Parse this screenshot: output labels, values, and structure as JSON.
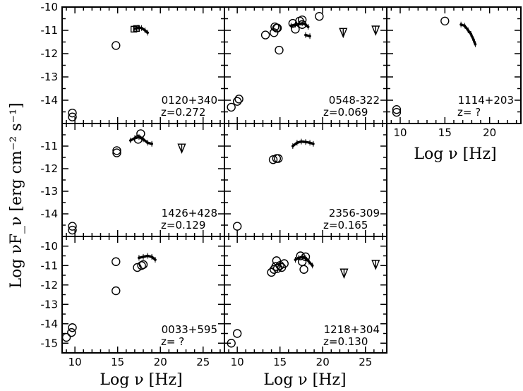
{
  "figure": {
    "y_axis_title": "Log νF_ν [erg cm⁻² s⁻¹]",
    "x_axis_title": "Log ν [Hz]"
  },
  "chart_data": [
    {
      "type": "scatter",
      "name": "0120+340",
      "redshift_label": "z=0.272",
      "xlim": [
        8.5,
        27.5
      ],
      "ylim": [
        -15,
        -10
      ],
      "ytick_labels": [
        "-10",
        "-11",
        "-12",
        "-13",
        "-14"
      ],
      "xtick_labels": [],
      "series": [
        {
          "marker": "open-circle",
          "points": [
            [
              9.7,
              -14.55
            ],
            [
              9.7,
              -14.72
            ],
            [
              14.8,
              -11.65
            ]
          ]
        },
        {
          "marker": "open-square",
          "points": [
            [
              16.9,
              -10.95
            ],
            [
              17.2,
              -10.92
            ]
          ]
        },
        {
          "marker": "spectrum",
          "points": [
            [
              17.0,
              -10.93
            ],
            [
              17.4,
              -10.88
            ],
            [
              17.8,
              -10.9
            ],
            [
              18.2,
              -11.0
            ],
            [
              18.5,
              -11.1
            ]
          ]
        }
      ]
    },
    {
      "type": "scatter",
      "name": "0548-322",
      "redshift_label": "z=0.069",
      "xlim": [
        8.5,
        27.5
      ],
      "ylim": [
        -15,
        -10
      ],
      "ytick_labels": [],
      "xtick_labels": [],
      "series": [
        {
          "marker": "open-circle",
          "points": [
            [
              9.3,
              -14.3
            ],
            [
              10.0,
              -14.05
            ],
            [
              10.2,
              -13.95
            ],
            [
              13.3,
              -11.2
            ],
            [
              14.3,
              -11.1
            ],
            [
              14.4,
              -10.85
            ],
            [
              14.6,
              -10.9
            ],
            [
              14.7,
              -10.9
            ],
            [
              14.9,
              -11.85
            ],
            [
              16.5,
              -10.7
            ],
            [
              16.8,
              -10.95
            ],
            [
              17.3,
              -10.6
            ],
            [
              17.6,
              -10.55
            ],
            [
              17.6,
              -10.75
            ],
            [
              19.6,
              -10.4
            ]
          ]
        },
        {
          "marker": "spectrum",
          "points": [
            [
              16.3,
              -10.8
            ],
            [
              16.8,
              -10.75
            ],
            [
              17.2,
              -10.72
            ],
            [
              17.6,
              -10.7
            ],
            [
              18.0,
              -10.75
            ],
            [
              18.3,
              -10.85
            ]
          ]
        },
        {
          "marker": "spectrum",
          "points": [
            [
              18.0,
              -11.2
            ],
            [
              18.5,
              -11.25
            ]
          ]
        },
        {
          "marker": "upper-limit",
          "points": [
            [
              22.4,
              -11.1
            ],
            [
              26.2,
              -11.0
            ]
          ]
        }
      ]
    },
    {
      "type": "scatter",
      "name": "1114+203",
      "redshift_label": "z= ?",
      "xlim": [
        8.5,
        23.5
      ],
      "ylim": [
        -15,
        -10
      ],
      "ytick_labels": [],
      "xtick_labels": [
        "10",
        "15",
        "20"
      ],
      "series": [
        {
          "marker": "open-circle",
          "points": [
            [
              9.6,
              -14.4
            ],
            [
              9.6,
              -14.52
            ],
            [
              15.0,
              -10.6
            ]
          ]
        },
        {
          "marker": "spectrum",
          "points": [
            [
              16.8,
              -10.75
            ],
            [
              17.2,
              -10.8
            ],
            [
              17.6,
              -11.0
            ],
            [
              17.9,
              -11.15
            ],
            [
              18.2,
              -11.4
            ],
            [
              18.4,
              -11.6
            ]
          ]
        }
      ]
    },
    {
      "type": "scatter",
      "name": "1426+428",
      "redshift_label": "z=0.129",
      "xlim": [
        8.5,
        27.5
      ],
      "ylim": [
        -15,
        -10
      ],
      "ytick_labels": [
        "-11",
        "-12",
        "-13",
        "-14"
      ],
      "xtick_labels": [],
      "series": [
        {
          "marker": "open-circle",
          "points": [
            [
              9.7,
              -14.55
            ],
            [
              9.7,
              -14.72
            ],
            [
              14.9,
              -11.2
            ],
            [
              14.9,
              -11.3
            ],
            [
              17.4,
              -10.7
            ],
            [
              17.7,
              -10.45
            ]
          ]
        },
        {
          "marker": "spectrum",
          "points": [
            [
              16.5,
              -10.75
            ],
            [
              17.0,
              -10.65
            ],
            [
              17.5,
              -10.6
            ],
            [
              18.0,
              -10.7
            ],
            [
              18.5,
              -10.85
            ],
            [
              19.0,
              -10.9
            ]
          ]
        },
        {
          "marker": "upper-limit",
          "points": [
            [
              22.5,
              -11.1
            ]
          ]
        }
      ]
    },
    {
      "type": "scatter",
      "name": "2356-309",
      "redshift_label": "z=0.165",
      "xlim": [
        8.5,
        27.5
      ],
      "ylim": [
        -15,
        -10
      ],
      "ytick_labels": [],
      "xtick_labels": [],
      "series": [
        {
          "marker": "open-circle",
          "points": [
            [
              10.0,
              -14.55
            ],
            [
              14.2,
              -11.6
            ],
            [
              14.6,
              -11.55
            ],
            [
              14.8,
              -11.55
            ]
          ]
        },
        {
          "marker": "spectrum",
          "points": [
            [
              16.5,
              -11.0
            ],
            [
              17.0,
              -10.85
            ],
            [
              17.5,
              -10.8
            ],
            [
              18.0,
              -10.82
            ],
            [
              18.5,
              -10.85
            ],
            [
              18.9,
              -10.9
            ]
          ]
        }
      ]
    },
    {
      "type": "scatter",
      "name": "0033+595",
      "redshift_label": "z= ?",
      "xlim": [
        8.5,
        27.5
      ],
      "ylim": [
        -15.5,
        -9.5
      ],
      "ytick_labels": [
        "-10",
        "-11",
        "-12",
        "-13",
        "-14",
        "-15"
      ],
      "xtick_labels": [
        "10",
        "15",
        "20",
        "25"
      ],
      "series": [
        {
          "marker": "open-circle",
          "points": [
            [
              9.0,
              -14.7
            ],
            [
              9.6,
              -14.45
            ],
            [
              9.7,
              -14.2
            ],
            [
              14.8,
              -10.8
            ],
            [
              14.8,
              -12.3
            ],
            [
              17.3,
              -11.1
            ],
            [
              17.8,
              -11.0
            ],
            [
              18.0,
              -10.95
            ]
          ]
        },
        {
          "marker": "spectrum",
          "points": [
            [
              17.5,
              -10.6
            ],
            [
              18.0,
              -10.55
            ],
            [
              18.5,
              -10.5
            ],
            [
              19.0,
              -10.55
            ],
            [
              19.4,
              -10.7
            ]
          ]
        }
      ]
    },
    {
      "type": "scatter",
      "name": "1218+304",
      "redshift_label": "z=0.130",
      "xlim": [
        8.5,
        27.5
      ],
      "ylim": [
        -15.5,
        -9.5
      ],
      "ytick_labels": [],
      "xtick_labels": [
        "10",
        "15",
        "20",
        "25"
      ],
      "series": [
        {
          "marker": "open-circle",
          "points": [
            [
              9.3,
              -15.0
            ],
            [
              10.0,
              -14.5
            ],
            [
              14.0,
              -11.35
            ],
            [
              14.3,
              -11.2
            ],
            [
              14.5,
              -11.05
            ],
            [
              14.6,
              -10.75
            ],
            [
              14.7,
              -11.15
            ],
            [
              15.0,
              -11.0
            ],
            [
              15.2,
              -11.1
            ],
            [
              15.5,
              -10.9
            ],
            [
              17.4,
              -10.5
            ],
            [
              17.6,
              -10.8
            ],
            [
              17.8,
              -11.2
            ],
            [
              18.0,
              -10.55
            ]
          ]
        },
        {
          "marker": "spectrum",
          "points": [
            [
              16.8,
              -10.7
            ],
            [
              17.2,
              -10.6
            ],
            [
              17.6,
              -10.55
            ],
            [
              18.0,
              -10.6
            ],
            [
              18.4,
              -10.8
            ],
            [
              18.8,
              -11.0
            ]
          ]
        },
        {
          "marker": "upper-limit",
          "points": [
            [
              22.5,
              -11.4
            ],
            [
              26.2,
              -10.95
            ]
          ]
        }
      ]
    }
  ]
}
